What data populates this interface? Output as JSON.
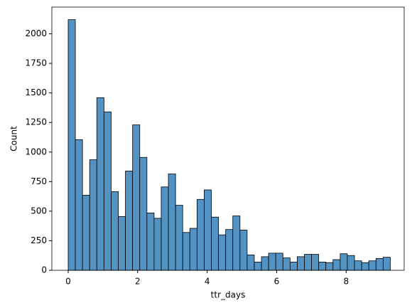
{
  "chart_data": {
    "type": "histogram",
    "xlabel": "ttr_days",
    "ylabel": "Count",
    "color": "#5293c4",
    "bins": [
      0,
      0.206,
      0.412,
      0.618,
      0.824,
      1.03,
      1.236,
      1.442,
      1.648,
      1.854,
      2.06,
      2.266,
      2.472,
      2.678,
      2.884,
      3.09,
      3.296,
      3.502,
      3.708,
      3.914,
      4.12,
      4.326,
      4.532,
      4.738,
      4.944,
      5.15,
      5.356,
      5.562,
      5.768,
      5.974,
      6.18,
      6.386,
      6.592,
      6.798,
      7.004,
      7.21,
      7.416,
      7.622,
      7.828,
      8.034,
      8.24,
      8.446,
      8.652,
      8.858,
      9.064,
      9.27
    ],
    "values": [
      2120,
      1105,
      635,
      935,
      1460,
      1340,
      665,
      455,
      840,
      1230,
      955,
      485,
      440,
      705,
      815,
      550,
      320,
      355,
      600,
      680,
      450,
      300,
      345,
      460,
      340,
      130,
      70,
      115,
      145,
      145,
      105,
      70,
      115,
      135,
      135,
      70,
      65,
      90,
      140,
      125,
      80,
      65,
      80,
      100,
      110
    ],
    "xlim": [
      -0.47,
      9.67
    ],
    "xticks": [
      0,
      2,
      4,
      6,
      8
    ],
    "ylim": [
      0,
      2226
    ],
    "yticks": [
      0,
      250,
      500,
      750,
      1000,
      1250,
      1500,
      1750,
      2000
    ]
  }
}
